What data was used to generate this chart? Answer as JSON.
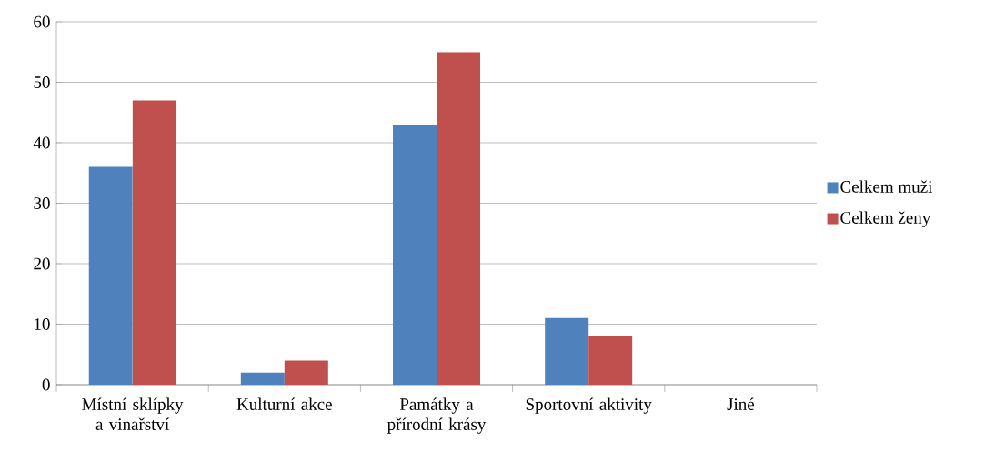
{
  "chart_data": {
    "type": "bar",
    "categories": [
      "Místní sklípky a vinařství",
      "Kulturní akce",
      "Památky a přírodní krásy",
      "Sportovní aktivity",
      "Jiné"
    ],
    "series": [
      {
        "name": "Celkem muži",
        "color": "#4f81bd",
        "values": [
          36,
          2,
          43,
          11,
          0
        ]
      },
      {
        "name": "Celkem ženy",
        "color": "#c0504d",
        "values": [
          47,
          4,
          55,
          8,
          0
        ]
      }
    ],
    "ylim": [
      0,
      60
    ],
    "yticks": [
      0,
      10,
      20,
      30,
      40,
      50,
      60
    ],
    "grid": "y",
    "legend": "right"
  }
}
